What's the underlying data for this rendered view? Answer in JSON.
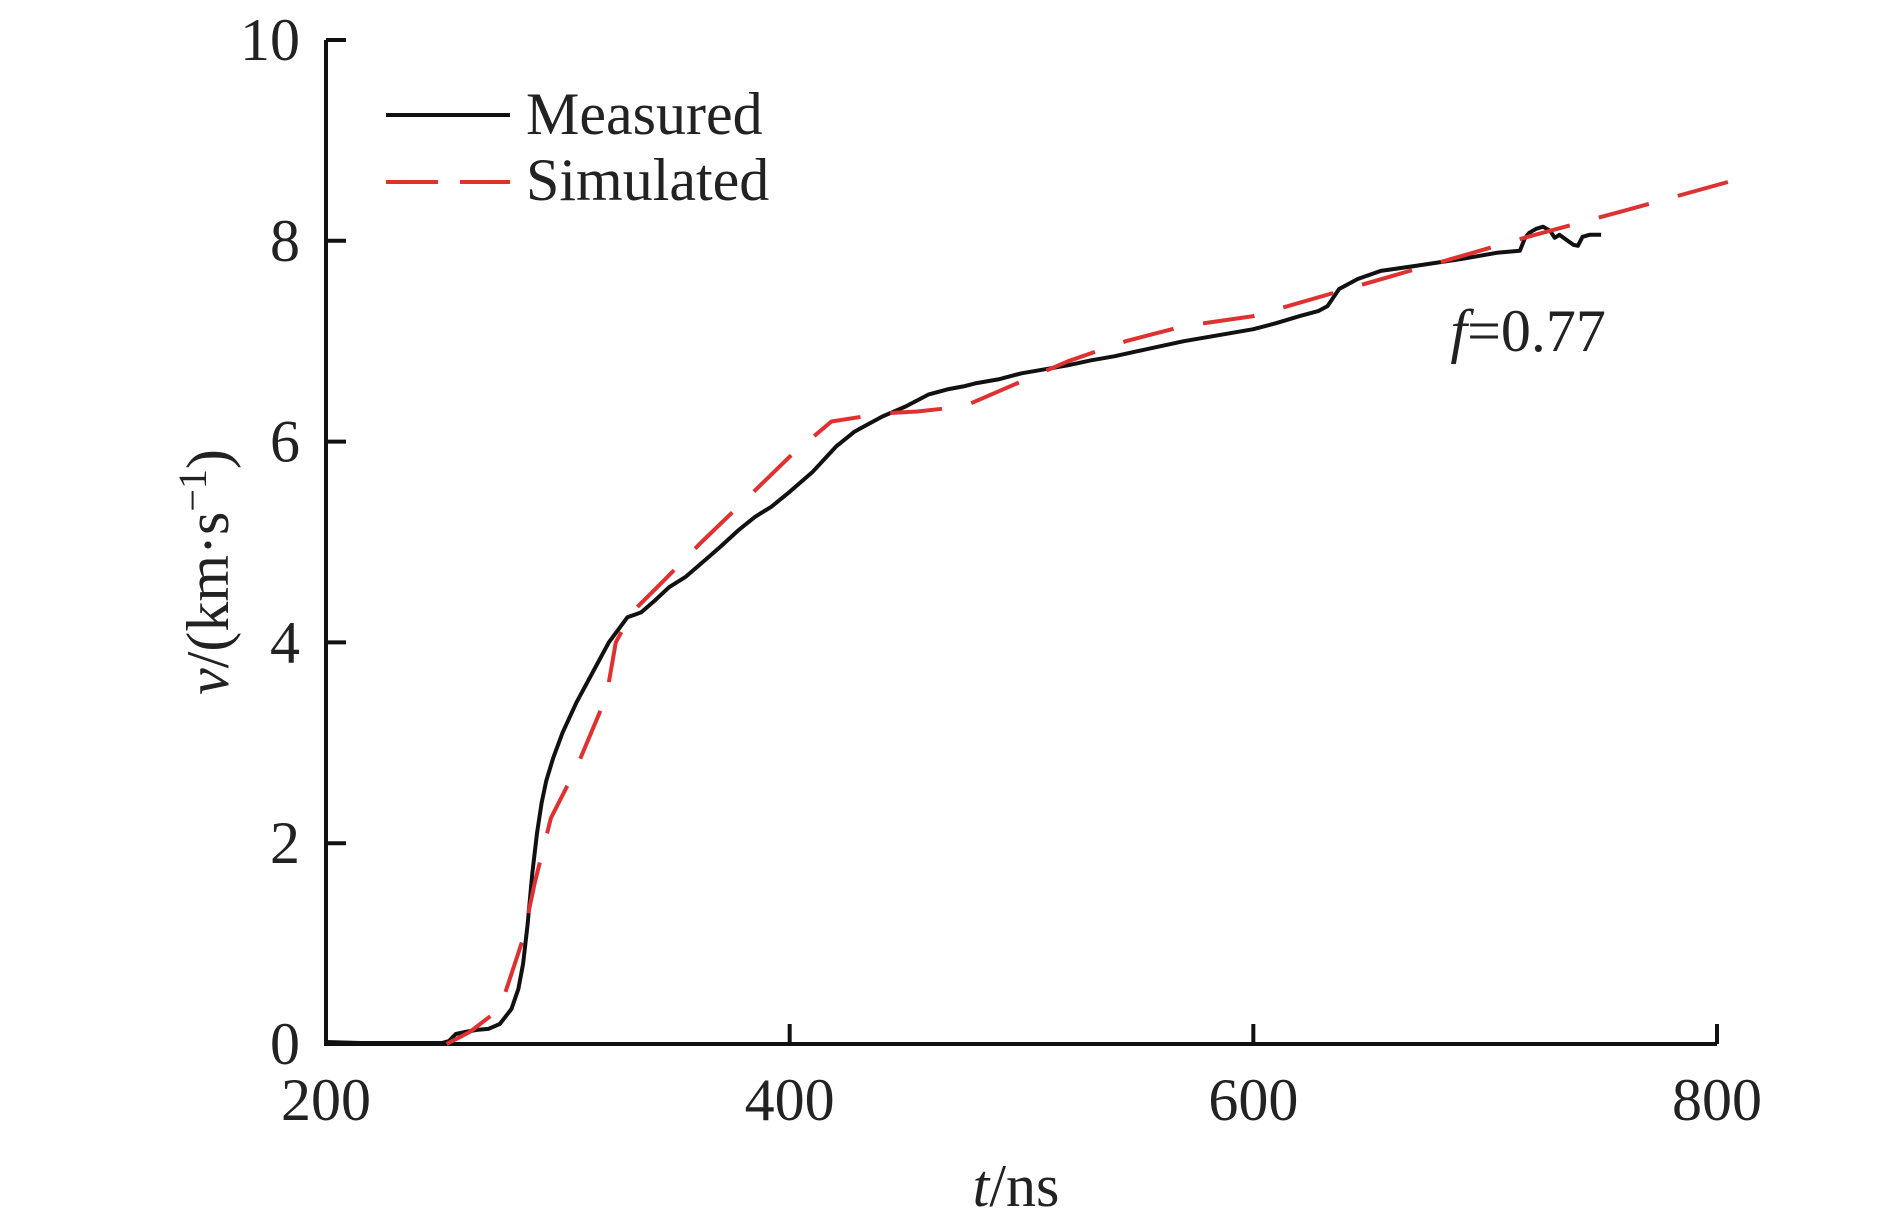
{
  "chart_data": {
    "type": "line",
    "xlabel_var": "t",
    "xlabel_unit": "/ns",
    "ylabel_var": "v",
    "ylabel_unit_pre": "/(km·s",
    "ylabel_unit_sup": "−1",
    "ylabel_unit_post": ")",
    "xlim": [
      200,
      800
    ],
    "ylim": [
      0,
      10
    ],
    "x_ticks": [
      200,
      400,
      600,
      800
    ],
    "y_ticks": [
      0,
      2,
      4,
      6,
      8,
      10
    ],
    "x_tick_labels": [
      "200",
      "400",
      "600",
      "800"
    ],
    "y_tick_labels": [
      "0",
      "2",
      "4",
      "6",
      "8",
      "10"
    ],
    "grid": false,
    "legend_position": "top-left",
    "annotation": {
      "var": "f",
      "text": "=0.77",
      "at": [
        685,
        6.9
      ]
    },
    "series": [
      {
        "name": "Measured",
        "style": "solid",
        "color": "#111111",
        "x": [
          200,
          215,
          250,
          253,
          256,
          260,
          265,
          270,
          275,
          280,
          283,
          285,
          287,
          289,
          291,
          293,
          295,
          298,
          302,
          308,
          315,
          322,
          330,
          336,
          342,
          348,
          355,
          360,
          365,
          370,
          378,
          385,
          392,
          400,
          410,
          420,
          428,
          432,
          440,
          450,
          460,
          468,
          475,
          480,
          490,
          500,
          510,
          520,
          530,
          540,
          550,
          560,
          570,
          580,
          590,
          600,
          610,
          620,
          628,
          632,
          637,
          645,
          655,
          670,
          690,
          705,
          715,
          717,
          719,
          722,
          725,
          728,
          730,
          732,
          735,
          738,
          740,
          742,
          745,
          750
        ],
        "y": [
          0.02,
          0.01,
          0.01,
          0.03,
          0.1,
          0.12,
          0.14,
          0.15,
          0.2,
          0.35,
          0.55,
          0.8,
          1.2,
          1.7,
          2.1,
          2.4,
          2.62,
          2.85,
          3.1,
          3.4,
          3.7,
          4.0,
          4.25,
          4.3,
          4.42,
          4.55,
          4.65,
          4.75,
          4.85,
          4.95,
          5.12,
          5.25,
          5.35,
          5.5,
          5.7,
          5.95,
          6.1,
          6.15,
          6.25,
          6.35,
          6.47,
          6.52,
          6.55,
          6.58,
          6.62,
          6.68,
          6.72,
          6.76,
          6.81,
          6.85,
          6.9,
          6.95,
          7.0,
          7.04,
          7.08,
          7.12,
          7.18,
          7.25,
          7.3,
          7.35,
          7.52,
          7.62,
          7.7,
          7.75,
          7.82,
          7.88,
          7.9,
          8.02,
          8.08,
          8.12,
          8.14,
          8.1,
          8.03,
          8.06,
          8.01,
          7.96,
          7.95,
          8.04,
          8.06,
          8.06
        ]
      },
      {
        "name": "Simulated",
        "style": "dashed",
        "color": "#e03131",
        "x": [
          252,
          262,
          275,
          285,
          290,
          297,
          308,
          318,
          322,
          325,
          332,
          345,
          362,
          380,
          400,
          418,
          440,
          455,
          475,
          495,
          520,
          545,
          570,
          600,
          630,
          660,
          690,
          720,
          760,
          810
        ],
        "y": [
          0.0,
          0.12,
          0.35,
          1.05,
          1.6,
          2.25,
          2.75,
          3.3,
          3.6,
          4.0,
          4.3,
          4.6,
          5.0,
          5.4,
          5.85,
          6.2,
          6.28,
          6.3,
          6.35,
          6.55,
          6.8,
          7.0,
          7.15,
          7.25,
          7.45,
          7.65,
          7.85,
          8.05,
          8.3,
          8.62
        ]
      }
    ]
  }
}
